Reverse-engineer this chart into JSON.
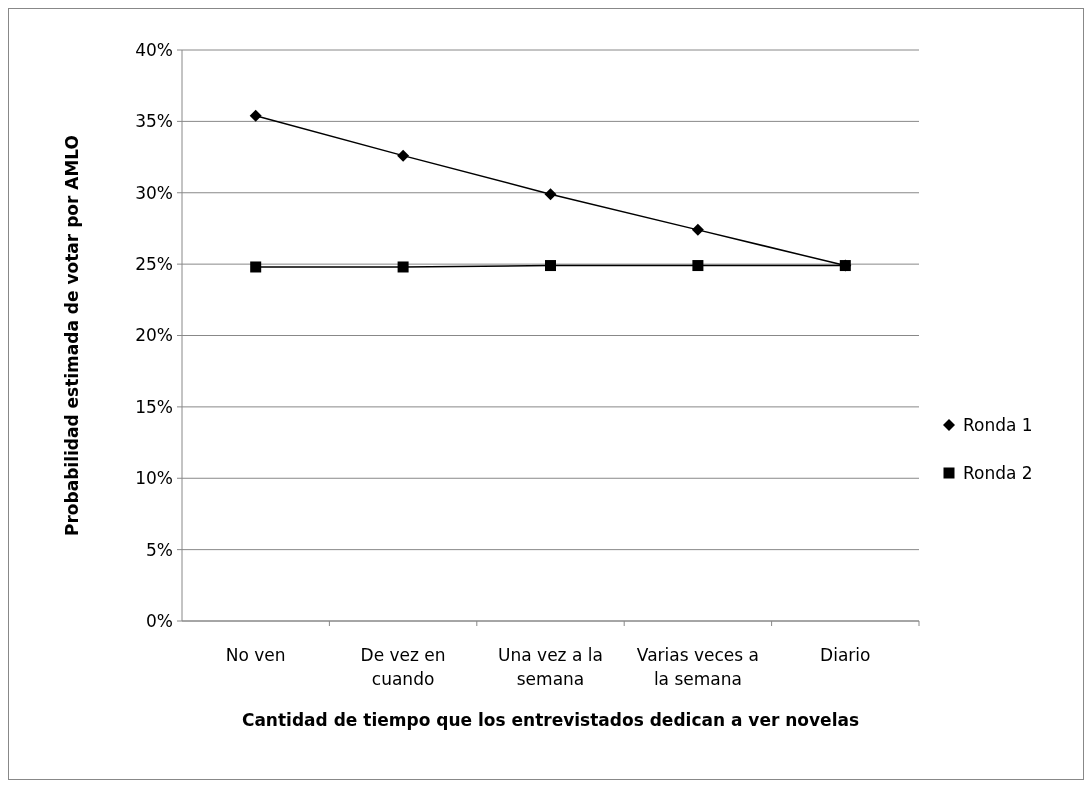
{
  "chart_data": {
    "type": "line",
    "xlabel": "Cantidad de tiempo que los entrevistados dedican a ver novelas",
    "ylabel": "Probabilidad estimada de votar por AMLO",
    "categories": [
      "No ven",
      "De vez en cuando",
      "Una vez a la semana",
      "Varias veces a la semana",
      "Diario"
    ],
    "series": [
      {
        "name": "Ronda 1",
        "color": "#000000",
        "marker": "diamond",
        "values": [
          0.354,
          0.326,
          0.299,
          0.274,
          0.249
        ]
      },
      {
        "name": "Ronda 2",
        "color": "#000000",
        "marker": "square",
        "values": [
          0.248,
          0.248,
          0.249,
          0.249,
          0.249
        ]
      }
    ],
    "ylim": [
      0,
      0.4
    ],
    "yticks": [
      {
        "value": 0,
        "label": "0%"
      },
      {
        "value": 0.05,
        "label": "5%"
      },
      {
        "value": 0.1,
        "label": "10%"
      },
      {
        "value": 0.15,
        "label": "15%"
      },
      {
        "value": 0.2,
        "label": "20%"
      },
      {
        "value": 0.25,
        "label": "25%"
      },
      {
        "value": 0.3,
        "label": "30%"
      },
      {
        "value": 0.35,
        "label": "35%"
      },
      {
        "value": 0.4,
        "label": "40%"
      }
    ],
    "grid": "y",
    "legend": "right",
    "line_style": "solid"
  }
}
